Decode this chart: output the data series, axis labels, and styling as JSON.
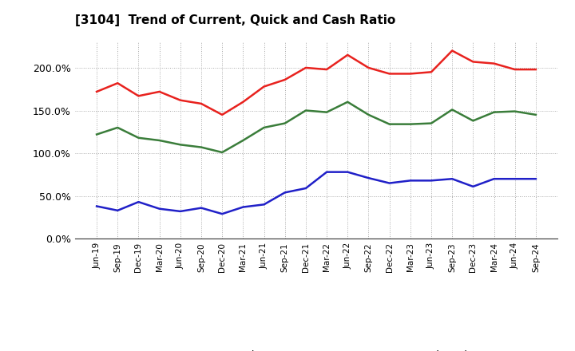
{
  "title": "[3104]  Trend of Current, Quick and Cash Ratio",
  "x_labels": [
    "Jun-19",
    "Sep-19",
    "Dec-19",
    "Mar-20",
    "Jun-20",
    "Sep-20",
    "Dec-20",
    "Mar-21",
    "Jun-21",
    "Sep-21",
    "Dec-21",
    "Mar-22",
    "Jun-22",
    "Sep-22",
    "Dec-22",
    "Mar-23",
    "Jun-23",
    "Sep-23",
    "Dec-23",
    "Mar-24",
    "Jun-24",
    "Sep-24"
  ],
  "current_ratio": [
    172,
    182,
    167,
    172,
    162,
    158,
    145,
    160,
    178,
    186,
    200,
    198,
    215,
    200,
    193,
    193,
    195,
    220,
    207,
    205,
    198,
    198
  ],
  "quick_ratio": [
    122,
    130,
    118,
    115,
    110,
    107,
    101,
    115,
    130,
    135,
    150,
    148,
    160,
    145,
    134,
    134,
    135,
    151,
    138,
    148,
    149,
    145
  ],
  "cash_ratio": [
    38,
    33,
    43,
    35,
    32,
    36,
    29,
    37,
    40,
    54,
    59,
    78,
    78,
    71,
    65,
    68,
    68,
    70,
    61,
    70,
    70,
    70
  ],
  "current_color": "#e8221e",
  "quick_color": "#3a7d3a",
  "cash_color": "#2020c8",
  "ylim": [
    0,
    230
  ],
  "yticks": [
    0,
    50,
    100,
    150,
    200
  ],
  "background_color": "#ffffff",
  "grid_color": "#aaaaaa",
  "line_width": 1.8
}
